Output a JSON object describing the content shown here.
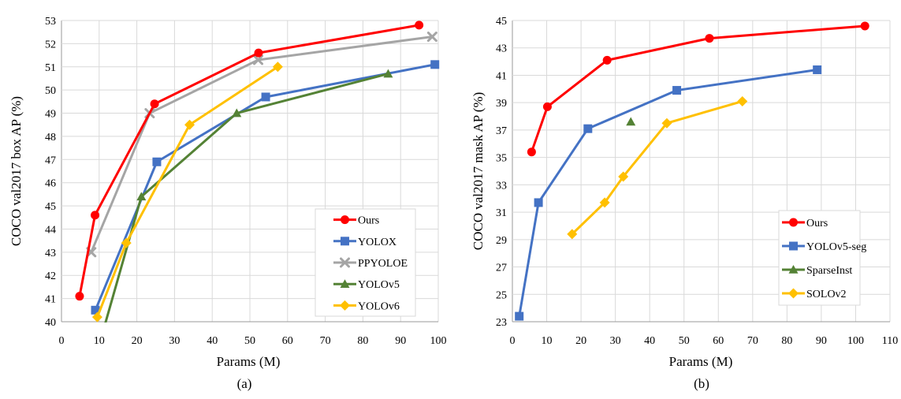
{
  "figure": {
    "caption_a": "(a)",
    "caption_b": "(b)"
  },
  "chart_data": [
    {
      "id": "a",
      "type": "line",
      "caption": "(a)",
      "xlabel": "Params (M)",
      "ylabel": "COCO val2017 box AP (%)",
      "xlim": [
        0,
        100
      ],
      "ylim": [
        40,
        53
      ],
      "xticks": [
        0,
        10,
        20,
        30,
        40,
        50,
        60,
        70,
        80,
        90,
        100
      ],
      "yticks": [
        40,
        41,
        42,
        43,
        44,
        45,
        46,
        47,
        48,
        49,
        50,
        51,
        52,
        53
      ],
      "grid": true,
      "legend_position": "inside-right",
      "grid_color": "#d9d9d9",
      "axis_color": "#999999",
      "series": [
        {
          "name": "Ours",
          "color": "#FF0000",
          "marker": "circle",
          "points": [
            [
              4.8,
              41.1
            ],
            [
              8.9,
              44.6
            ],
            [
              24.7,
              49.4
            ],
            [
              52.3,
              51.6
            ],
            [
              94.9,
              52.8
            ]
          ]
        },
        {
          "name": "YOLOX",
          "color": "#4472C4",
          "marker": "square",
          "points": [
            [
              9.0,
              40.5
            ],
            [
              25.3,
              46.9
            ],
            [
              54.2,
              49.7
            ],
            [
              99.1,
              51.1
            ]
          ]
        },
        {
          "name": "PPYOLOE",
          "color": "#A5A5A5",
          "marker": "x",
          "points": [
            [
              7.9,
              43.0
            ],
            [
              23.4,
              49.0
            ],
            [
              52.2,
              51.3
            ],
            [
              98.4,
              52.3
            ]
          ]
        },
        {
          "name": "YOLOv5",
          "color": "#548235",
          "marker": "triangle",
          "points": [
            [
              7.2,
              37.4
            ],
            [
              21.2,
              45.4
            ],
            [
              46.5,
              49.0
            ],
            [
              86.7,
              50.7
            ]
          ]
        },
        {
          "name": "YOLOv6",
          "color": "#FFC000",
          "marker": "diamond",
          "points": [
            [
              9.5,
              40.2
            ],
            [
              17.2,
              43.4
            ],
            [
              34.0,
              48.5
            ],
            [
              57.4,
              51.0
            ]
          ]
        }
      ]
    },
    {
      "id": "b",
      "type": "line",
      "caption": "(b)",
      "xlabel": "Params (M)",
      "ylabel": "COCO val2017 mask AP (%)",
      "xlim": [
        0,
        110
      ],
      "ylim": [
        23,
        45
      ],
      "xticks": [
        0,
        10,
        20,
        30,
        40,
        50,
        60,
        70,
        80,
        90,
        100,
        110
      ],
      "yticks": [
        23,
        25,
        27,
        29,
        31,
        33,
        35,
        37,
        39,
        41,
        43,
        45
      ],
      "grid": true,
      "legend_position": "inside-right",
      "grid_color": "#d9d9d9",
      "axis_color": "#999999",
      "series": [
        {
          "name": "Ours",
          "color": "#FF0000",
          "marker": "circle",
          "points": [
            [
              5.6,
              35.4
            ],
            [
              10.2,
              38.7
            ],
            [
              27.6,
              42.1
            ],
            [
              57.4,
              43.7
            ],
            [
              102.7,
              44.6
            ]
          ]
        },
        {
          "name": "YOLOv5-seg",
          "color": "#4472C4",
          "marker": "square",
          "points": [
            [
              2.0,
              23.4
            ],
            [
              7.6,
              31.7
            ],
            [
              22.0,
              37.1
            ],
            [
              47.9,
              39.9
            ],
            [
              88.8,
              41.4
            ]
          ]
        },
        {
          "name": "SparseInst",
          "color": "#548235",
          "marker": "triangle",
          "points": [
            [
              34.5,
              37.6
            ]
          ]
        },
        {
          "name": "SOLOv2",
          "color": "#FFC000",
          "marker": "diamond",
          "points": [
            [
              17.4,
              29.4
            ],
            [
              26.9,
              31.7
            ],
            [
              32.3,
              33.6
            ],
            [
              45.0,
              37.5
            ],
            [
              67.0,
              39.1
            ]
          ]
        }
      ]
    }
  ]
}
